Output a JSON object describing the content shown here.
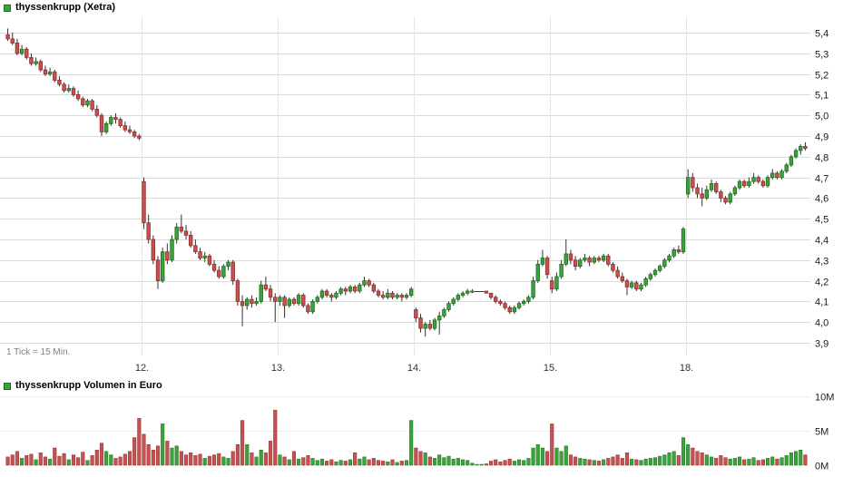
{
  "price_chart": {
    "title": "thyssenkrupp (Xetra)",
    "tick_note": "1 Tick = 15 Min."
  },
  "volume_chart": {
    "title": "thyssenkrupp Volumen in Euro"
  },
  "colors": {
    "up": "#3CA33C",
    "up_border": "#1F6E1F",
    "down": "#C75050",
    "down_border": "#8E2F2F",
    "wick": "#333333",
    "grid": "#DCDCDC",
    "day_grid": "#E6E6E6",
    "axis_text": "#1A1A1A",
    "day_label": "#333333",
    "vol_grid": "#EEEEEE"
  },
  "chart_data": [
    {
      "type": "candlestick",
      "title": "thyssenkrupp (Xetra)",
      "tick_interval": "1 Tick = 15 Min.",
      "x_day_labels": [
        "12.",
        "13.",
        "14.",
        "15.",
        "18."
      ],
      "day_start_indices": [
        29,
        58,
        87,
        116,
        145
      ],
      "y_axis": {
        "max": 5.4,
        "min": 3.9,
        "step": 0.1,
        "labels": [
          "5,4",
          "5,3",
          "5,2",
          "5,1",
          "5,0",
          "4,9",
          "4,8",
          "4,7",
          "4,6",
          "4,5",
          "4,4",
          "4,3",
          "4,2",
          "4,1",
          "4,0",
          "3,9"
        ],
        "position": "right",
        "decimal_format": "comma"
      },
      "candles_format": [
        "open",
        "high",
        "low",
        "close",
        "volume_millions_eur"
      ],
      "candles": [
        [
          5.39,
          5.42,
          5.36,
          5.37,
          1.2
        ],
        [
          5.37,
          5.4,
          5.34,
          5.35,
          1.5
        ],
        [
          5.35,
          5.37,
          5.29,
          5.3,
          2.0
        ],
        [
          5.3,
          5.34,
          5.29,
          5.32,
          1.0
        ],
        [
          5.32,
          5.33,
          5.27,
          5.28,
          1.4
        ],
        [
          5.28,
          5.3,
          5.24,
          5.25,
          1.6
        ],
        [
          5.25,
          5.28,
          5.24,
          5.26,
          0.8
        ],
        [
          5.26,
          5.27,
          5.21,
          5.22,
          1.8
        ],
        [
          5.22,
          5.24,
          5.19,
          5.2,
          1.2
        ],
        [
          5.2,
          5.23,
          5.19,
          5.21,
          0.9
        ],
        [
          5.21,
          5.22,
          5.16,
          5.17,
          2.5
        ],
        [
          5.17,
          5.19,
          5.14,
          5.15,
          1.3
        ],
        [
          5.15,
          5.16,
          5.11,
          5.12,
          1.7
        ],
        [
          5.12,
          5.15,
          5.11,
          5.13,
          0.8
        ],
        [
          5.13,
          5.14,
          5.09,
          5.1,
          1.5
        ],
        [
          5.1,
          5.12,
          5.07,
          5.08,
          1.1
        ],
        [
          5.08,
          5.09,
          5.04,
          5.05,
          1.9
        ],
        [
          5.05,
          5.08,
          5.04,
          5.07,
          0.7
        ],
        [
          5.07,
          5.08,
          5.02,
          5.03,
          1.4
        ],
        [
          5.03,
          5.05,
          4.99,
          5.0,
          2.2
        ],
        [
          5.0,
          5.01,
          4.9,
          4.92,
          3.2
        ],
        [
          4.92,
          4.97,
          4.91,
          4.96,
          2.0
        ],
        [
          4.96,
          5.0,
          4.95,
          4.99,
          1.5
        ],
        [
          4.99,
          5.01,
          4.96,
          4.98,
          1.0
        ],
        [
          4.98,
          4.99,
          4.94,
          4.95,
          1.2
        ],
        [
          4.95,
          4.97,
          4.92,
          4.93,
          1.6
        ],
        [
          4.93,
          4.95,
          4.91,
          4.92,
          2.0
        ],
        [
          4.92,
          4.93,
          4.89,
          4.9,
          4.0
        ],
        [
          4.9,
          4.91,
          4.88,
          4.89,
          6.8
        ],
        [
          4.68,
          4.7,
          4.45,
          4.48,
          4.5
        ],
        [
          4.48,
          4.52,
          4.38,
          4.4,
          3.0
        ],
        [
          4.4,
          4.42,
          4.28,
          4.3,
          2.2
        ],
        [
          4.3,
          4.32,
          4.16,
          4.2,
          2.8
        ],
        [
          4.2,
          4.36,
          4.19,
          4.34,
          6.0
        ],
        [
          4.34,
          4.38,
          4.28,
          4.3,
          3.5
        ],
        [
          4.3,
          4.42,
          4.29,
          4.4,
          2.5
        ],
        [
          4.4,
          4.48,
          4.38,
          4.46,
          2.8
        ],
        [
          4.46,
          4.52,
          4.43,
          4.44,
          2.0
        ],
        [
          4.44,
          4.47,
          4.4,
          4.42,
          1.5
        ],
        [
          4.42,
          4.44,
          4.36,
          4.37,
          1.8
        ],
        [
          4.37,
          4.4,
          4.33,
          4.34,
          1.4
        ],
        [
          4.34,
          4.36,
          4.3,
          4.31,
          1.6
        ],
        [
          4.31,
          4.34,
          4.29,
          4.32,
          1.0
        ],
        [
          4.32,
          4.33,
          4.27,
          4.28,
          1.3
        ],
        [
          4.28,
          4.3,
          4.24,
          4.25,
          1.5
        ],
        [
          4.25,
          4.27,
          4.21,
          4.22,
          1.7
        ],
        [
          4.22,
          4.28,
          4.21,
          4.27,
          1.2
        ],
        [
          4.27,
          4.3,
          4.25,
          4.29,
          1.0
        ],
        [
          4.29,
          4.3,
          4.18,
          4.2,
          2.0
        ],
        [
          4.2,
          4.21,
          4.08,
          4.1,
          3.0
        ],
        [
          4.1,
          4.13,
          3.98,
          4.08,
          6.5
        ],
        [
          4.08,
          4.12,
          4.06,
          4.11,
          3.0
        ],
        [
          4.11,
          4.13,
          4.07,
          4.09,
          1.8
        ],
        [
          4.09,
          4.12,
          4.08,
          4.1,
          1.2
        ],
        [
          4.1,
          4.2,
          4.09,
          4.18,
          2.2
        ],
        [
          4.18,
          4.22,
          4.15,
          4.16,
          1.8
        ],
        [
          4.16,
          4.18,
          4.1,
          4.12,
          3.5
        ],
        [
          4.12,
          4.14,
          4.0,
          4.1,
          8.0
        ],
        [
          4.1,
          4.13,
          4.08,
          4.12,
          1.5
        ],
        [
          4.12,
          4.13,
          4.02,
          4.08,
          1.2
        ],
        [
          4.08,
          4.12,
          4.07,
          4.11,
          0.8
        ],
        [
          4.11,
          4.12,
          4.08,
          4.09,
          2.0
        ],
        [
          4.09,
          4.14,
          4.08,
          4.13,
          0.9
        ],
        [
          4.13,
          4.14,
          4.07,
          4.08,
          1.1
        ],
        [
          4.08,
          4.09,
          4.04,
          4.05,
          1.4
        ],
        [
          4.05,
          4.11,
          4.04,
          4.1,
          1.0
        ],
        [
          4.1,
          4.13,
          4.09,
          4.12,
          0.7
        ],
        [
          4.12,
          4.16,
          4.11,
          4.15,
          0.9
        ],
        [
          4.15,
          4.16,
          4.12,
          4.13,
          0.6
        ],
        [
          4.13,
          4.14,
          4.1,
          4.12,
          0.8
        ],
        [
          4.12,
          4.15,
          4.11,
          4.14,
          0.5
        ],
        [
          4.14,
          4.17,
          4.13,
          4.16,
          0.7
        ],
        [
          4.16,
          4.17,
          4.13,
          4.15,
          0.6
        ],
        [
          4.15,
          4.18,
          4.14,
          4.17,
          0.8
        ],
        [
          4.17,
          4.18,
          4.14,
          4.15,
          1.8
        ],
        [
          4.15,
          4.19,
          4.14,
          4.18,
          0.9
        ],
        [
          4.18,
          4.22,
          4.17,
          4.2,
          1.2
        ],
        [
          4.2,
          4.21,
          4.17,
          4.18,
          0.8
        ],
        [
          4.18,
          4.19,
          4.14,
          4.15,
          1.0
        ],
        [
          4.15,
          4.16,
          4.12,
          4.13,
          0.7
        ],
        [
          4.13,
          4.15,
          4.11,
          4.12,
          0.6
        ],
        [
          4.12,
          4.16,
          4.11,
          4.14,
          0.5
        ],
        [
          4.14,
          4.15,
          4.11,
          4.12,
          0.8
        ],
        [
          4.12,
          4.14,
          4.11,
          4.13,
          0.4
        ],
        [
          4.13,
          4.14,
          4.1,
          4.12,
          0.6
        ],
        [
          4.12,
          4.14,
          4.11,
          4.13,
          0.7
        ],
        [
          4.13,
          4.17,
          4.12,
          4.16,
          6.5
        ],
        [
          4.06,
          4.07,
          4.0,
          4.02,
          2.5
        ],
        [
          4.02,
          4.04,
          3.95,
          3.97,
          2.0
        ],
        [
          3.97,
          4.0,
          3.93,
          3.99,
          1.8
        ],
        [
          3.99,
          4.01,
          3.96,
          3.97,
          1.2
        ],
        [
          3.97,
          4.02,
          3.96,
          4.01,
          1.0
        ],
        [
          4.01,
          4.05,
          3.94,
          4.03,
          1.5
        ],
        [
          4.03,
          4.07,
          4.02,
          4.06,
          1.1
        ],
        [
          4.06,
          4.1,
          4.05,
          4.09,
          1.3
        ],
        [
          4.09,
          4.12,
          4.08,
          4.11,
          0.9
        ],
        [
          4.11,
          4.14,
          4.1,
          4.13,
          1.0
        ],
        [
          4.13,
          4.15,
          4.12,
          4.14,
          0.8
        ],
        [
          4.14,
          4.16,
          4.13,
          4.15,
          0.7
        ],
        [
          4.15,
          4.16,
          4.14,
          4.15,
          0.3
        ],
        [
          4.15,
          4.15,
          4.15,
          4.15,
          0.1
        ],
        [
          4.15,
          4.15,
          4.15,
          4.15,
          0.1
        ],
        [
          4.15,
          4.15,
          4.14,
          4.14,
          0.2
        ],
        [
          4.14,
          4.14,
          4.11,
          4.12,
          0.6
        ],
        [
          4.12,
          4.13,
          4.09,
          4.1,
          0.8
        ],
        [
          4.1,
          4.11,
          4.08,
          4.09,
          0.5
        ],
        [
          4.09,
          4.1,
          4.06,
          4.07,
          0.7
        ],
        [
          4.07,
          4.08,
          4.04,
          4.05,
          0.9
        ],
        [
          4.05,
          4.08,
          4.04,
          4.07,
          0.6
        ],
        [
          4.07,
          4.1,
          4.06,
          4.09,
          0.8
        ],
        [
          4.09,
          4.11,
          4.08,
          4.1,
          0.7
        ],
        [
          4.1,
          4.13,
          4.09,
          4.12,
          1.0
        ],
        [
          4.12,
          4.22,
          4.11,
          4.2,
          2.5
        ],
        [
          4.2,
          4.3,
          4.19,
          4.28,
          3.0
        ],
        [
          4.28,
          4.35,
          4.27,
          4.31,
          2.5
        ],
        [
          4.31,
          4.32,
          4.21,
          4.23,
          2.0
        ],
        [
          4.2,
          4.22,
          4.14,
          4.16,
          6.0
        ],
        [
          4.16,
          4.24,
          4.15,
          4.22,
          2.5
        ],
        [
          4.22,
          4.3,
          4.21,
          4.28,
          2.0
        ],
        [
          4.28,
          4.4,
          4.27,
          4.33,
          2.8
        ],
        [
          4.33,
          4.35,
          4.28,
          4.3,
          1.5
        ],
        [
          4.3,
          4.32,
          4.25,
          4.27,
          1.2
        ],
        [
          4.27,
          4.31,
          4.26,
          4.3,
          1.0
        ],
        [
          4.3,
          4.33,
          4.29,
          4.31,
          0.9
        ],
        [
          4.31,
          4.32,
          4.27,
          4.29,
          0.8
        ],
        [
          4.29,
          4.32,
          4.28,
          4.31,
          0.7
        ],
        [
          4.31,
          4.32,
          4.29,
          4.3,
          0.6
        ],
        [
          4.3,
          4.33,
          4.29,
          4.32,
          0.8
        ],
        [
          4.32,
          4.33,
          4.27,
          4.28,
          1.0
        ],
        [
          4.28,
          4.29,
          4.24,
          4.25,
          1.2
        ],
        [
          4.25,
          4.27,
          4.21,
          4.22,
          1.5
        ],
        [
          4.22,
          4.24,
          4.19,
          4.2,
          1.0
        ],
        [
          4.2,
          4.21,
          4.13,
          4.17,
          1.8
        ],
        [
          4.17,
          4.2,
          4.16,
          4.19,
          0.9
        ],
        [
          4.19,
          4.2,
          4.15,
          4.16,
          0.8
        ],
        [
          4.16,
          4.19,
          4.15,
          4.18,
          0.7
        ],
        [
          4.18,
          4.22,
          4.17,
          4.21,
          0.9
        ],
        [
          4.21,
          4.24,
          4.2,
          4.23,
          1.0
        ],
        [
          4.23,
          4.26,
          4.22,
          4.25,
          1.1
        ],
        [
          4.25,
          4.28,
          4.24,
          4.27,
          1.3
        ],
        [
          4.27,
          4.31,
          4.26,
          4.3,
          1.5
        ],
        [
          4.3,
          4.33,
          4.29,
          4.32,
          1.8
        ],
        [
          4.32,
          4.36,
          4.31,
          4.35,
          2.0
        ],
        [
          4.35,
          4.37,
          4.33,
          4.34,
          1.4
        ],
        [
          4.34,
          4.46,
          4.33,
          4.45,
          4.0
        ],
        [
          4.62,
          4.74,
          4.6,
          4.7,
          3.0
        ],
        [
          4.7,
          4.72,
          4.63,
          4.65,
          2.5
        ],
        [
          4.65,
          4.67,
          4.6,
          4.62,
          2.0
        ],
        [
          4.62,
          4.65,
          4.56,
          4.6,
          1.8
        ],
        [
          4.6,
          4.66,
          4.59,
          4.64,
          1.5
        ],
        [
          4.64,
          4.69,
          4.63,
          4.67,
          1.2
        ],
        [
          4.67,
          4.68,
          4.62,
          4.63,
          1.0
        ],
        [
          4.63,
          4.64,
          4.58,
          4.6,
          1.4
        ],
        [
          4.6,
          4.61,
          4.57,
          4.58,
          1.1
        ],
        [
          4.58,
          4.63,
          4.57,
          4.62,
          0.9
        ],
        [
          4.62,
          4.66,
          4.61,
          4.65,
          1.0
        ],
        [
          4.65,
          4.69,
          4.64,
          4.68,
          1.2
        ],
        [
          4.68,
          4.69,
          4.65,
          4.66,
          0.8
        ],
        [
          4.66,
          4.7,
          4.65,
          4.68,
          0.9
        ],
        [
          4.68,
          4.72,
          4.67,
          4.7,
          1.1
        ],
        [
          4.7,
          4.71,
          4.67,
          4.68,
          0.7
        ],
        [
          4.68,
          4.69,
          4.65,
          4.66,
          0.8
        ],
        [
          4.66,
          4.71,
          4.65,
          4.7,
          1.0
        ],
        [
          4.7,
          4.74,
          4.69,
          4.72,
          1.2
        ],
        [
          4.72,
          4.73,
          4.69,
          4.7,
          0.9
        ],
        [
          4.7,
          4.74,
          4.69,
          4.73,
          1.1
        ],
        [
          4.73,
          4.77,
          4.72,
          4.76,
          1.4
        ],
        [
          4.76,
          4.81,
          4.75,
          4.8,
          1.8
        ],
        [
          4.8,
          4.84,
          4.79,
          4.83,
          2.0
        ],
        [
          4.83,
          4.86,
          4.81,
          4.85,
          2.2
        ],
        [
          4.85,
          4.87,
          4.83,
          4.84,
          1.5
        ]
      ]
    },
    {
      "type": "bar",
      "title": "thyssenkrupp Volumen in Euro",
      "y_axis": {
        "labels": [
          "10M",
          "5M",
          "0M"
        ],
        "values": [
          10,
          5,
          0
        ],
        "position": "right"
      },
      "note": "bar heights are the volume_millions_eur element (index 4) of each candle in the candlestick series; bar color matches candle direction"
    }
  ]
}
